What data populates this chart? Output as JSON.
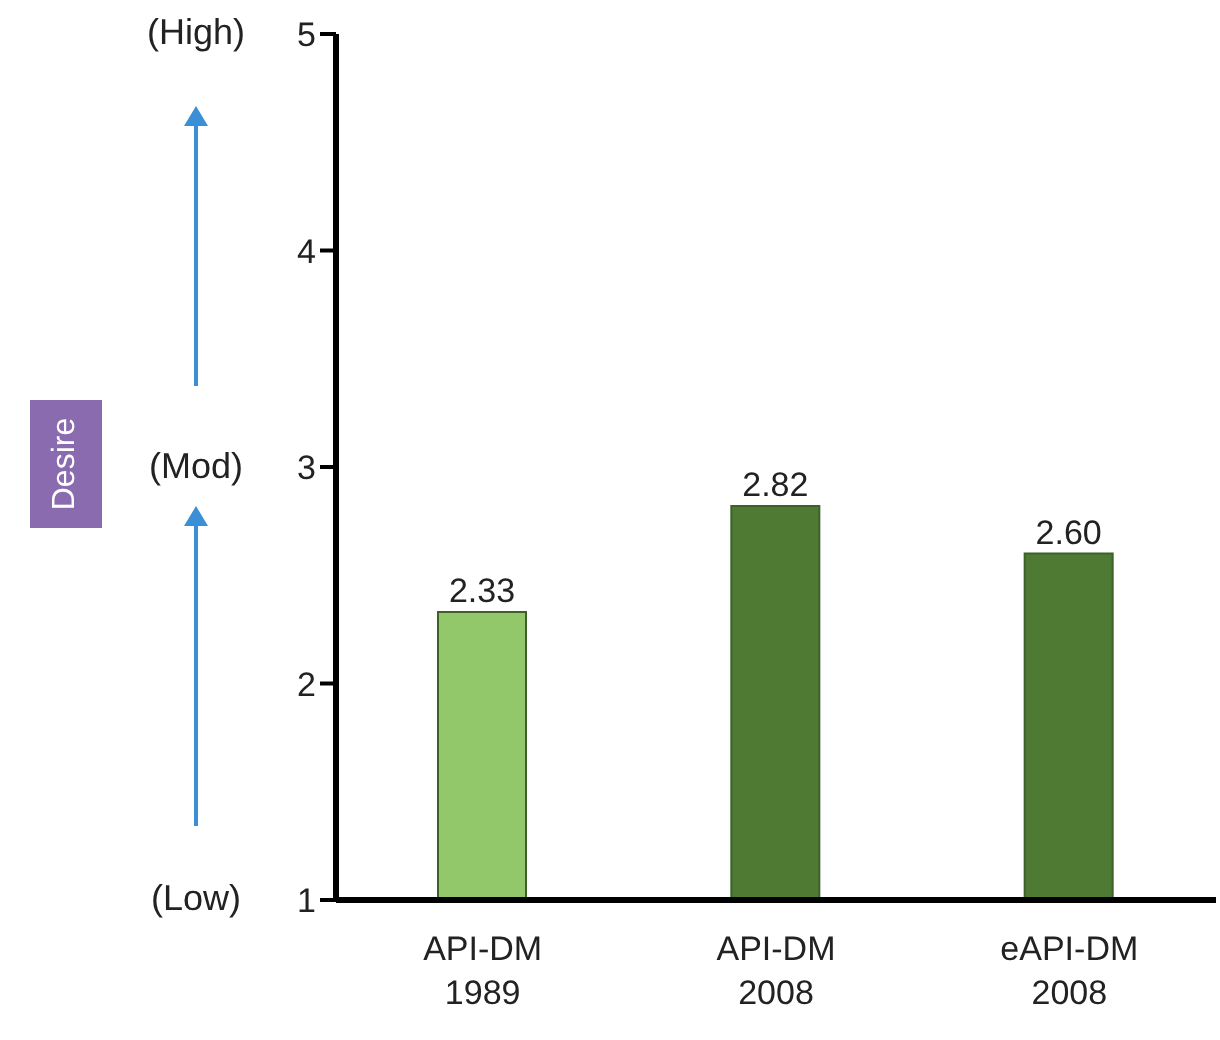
{
  "chart_data": {
    "type": "bar",
    "categories": [
      "API-DM\n1989",
      "API-DM\n2008",
      "eAPI-DM\n2008"
    ],
    "values": [
      2.33,
      2.82,
      2.6
    ],
    "colors": [
      "#92c86a",
      "#4e7a34",
      "#4e7a34"
    ],
    "value_labels": [
      "2.33",
      "2.82",
      "2.60"
    ],
    "ylim": [
      1,
      5
    ],
    "yticks": [
      1,
      2,
      3,
      4,
      5
    ],
    "grid": false,
    "annotations": [
      "Desire",
      "(High)",
      "(Mod)",
      "(Low)"
    ]
  }
}
